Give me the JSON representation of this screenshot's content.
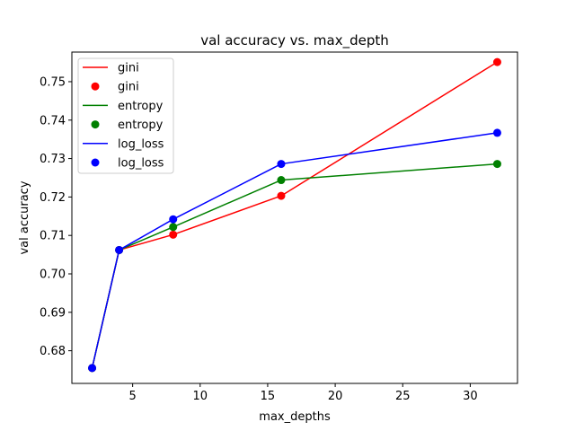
{
  "chart_data": {
    "type": "line",
    "title": "val accuracy vs. max_depth",
    "xlabel": "max_depths",
    "ylabel": "val accuracy",
    "x": [
      2,
      4,
      8,
      16,
      32
    ],
    "xlim": [
      0.5,
      33.5
    ],
    "ylim": [
      0.6715,
      0.7577
    ],
    "xticks": [
      5,
      10,
      15,
      20,
      25,
      30
    ],
    "yticks": [
      0.68,
      0.69,
      0.7,
      0.71,
      0.72,
      0.73,
      0.74,
      0.75
    ],
    "ytick_labels": [
      "0.68",
      "0.69",
      "0.70",
      "0.71",
      "0.72",
      "0.73",
      "0.74",
      "0.75"
    ],
    "grid": false,
    "legend_position": "top-left",
    "series": [
      {
        "name": "gini",
        "color": "#ff0000",
        "values": [
          0.6755,
          0.7062,
          0.7102,
          0.7203,
          0.7551
        ]
      },
      {
        "name": "entropy",
        "color": "#008000",
        "values": [
          0.6755,
          0.7062,
          0.7122,
          0.7244,
          0.7286
        ]
      },
      {
        "name": "log_loss",
        "color": "#0000ff",
        "values": [
          0.6755,
          0.7062,
          0.7142,
          0.7286,
          0.7367
        ]
      }
    ],
    "legend_entries": [
      {
        "label": "gini",
        "kind": "line",
        "color": "#ff0000"
      },
      {
        "label": "gini",
        "kind": "marker",
        "color": "#ff0000"
      },
      {
        "label": "entropy",
        "kind": "line",
        "color": "#008000"
      },
      {
        "label": "entropy",
        "kind": "marker",
        "color": "#008000"
      },
      {
        "label": "log_loss",
        "kind": "line",
        "color": "#0000ff"
      },
      {
        "label": "log_loss",
        "kind": "marker",
        "color": "#0000ff"
      }
    ]
  }
}
